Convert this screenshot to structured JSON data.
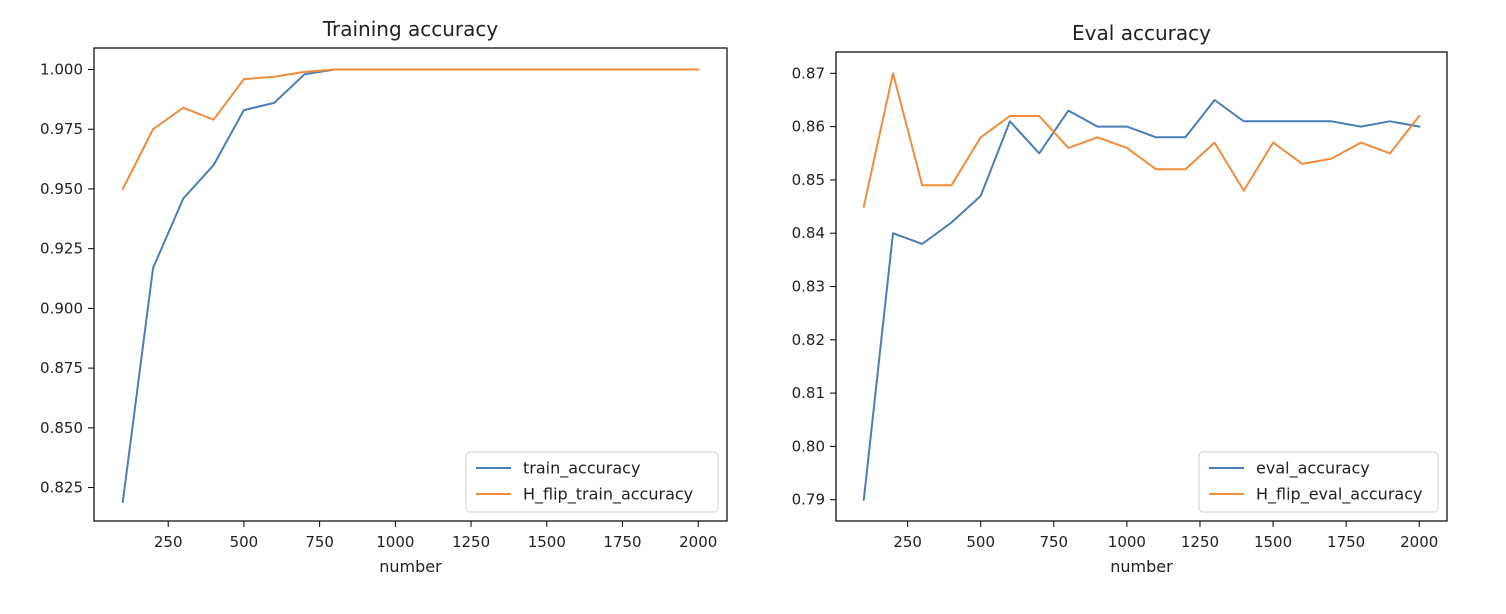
{
  "chart_data": [
    {
      "type": "line",
      "title": "Training accuracy",
      "xlabel": "number",
      "ylabel": "",
      "x": [
        100,
        200,
        300,
        400,
        500,
        600,
        700,
        800,
        900,
        1000,
        1100,
        1200,
        1300,
        1400,
        1500,
        1600,
        1700,
        1800,
        1900,
        2000
      ],
      "xlim": [
        5,
        2095
      ],
      "ylim": [
        0.811,
        1.009
      ],
      "xticks": [
        250,
        500,
        750,
        1000,
        1250,
        1500,
        1750,
        2000
      ],
      "xtick_labels": [
        "250",
        "500",
        "750",
        "1000",
        "1250",
        "1500",
        "1750",
        "2000"
      ],
      "yticks": [
        0.825,
        0.85,
        0.875,
        0.9,
        0.925,
        0.95,
        0.975,
        1.0
      ],
      "ytick_labels": [
        "0.825",
        "0.850",
        "0.875",
        "0.900",
        "0.925",
        "0.950",
        "0.975",
        "1.000"
      ],
      "grid": false,
      "legend_position": "lower-right",
      "series": [
        {
          "name": "train_accuracy",
          "color": "#4a7fb5",
          "values": [
            0.819,
            0.917,
            0.946,
            0.96,
            0.983,
            0.986,
            0.998,
            1.0,
            1.0,
            1.0,
            1.0,
            1.0,
            1.0,
            1.0,
            1.0,
            1.0,
            1.0,
            1.0,
            1.0,
            1.0
          ]
        },
        {
          "name": "H_flip_train_accuracy",
          "color": "#f08c3c",
          "values": [
            0.95,
            0.975,
            0.984,
            0.979,
            0.996,
            0.997,
            0.999,
            1.0,
            1.0,
            1.0,
            1.0,
            1.0,
            1.0,
            1.0,
            1.0,
            1.0,
            1.0,
            1.0,
            1.0,
            1.0
          ]
        }
      ]
    },
    {
      "type": "line",
      "title": "Eval accuracy",
      "xlabel": "number",
      "ylabel": "",
      "x": [
        100,
        200,
        300,
        400,
        500,
        600,
        700,
        800,
        900,
        1000,
        1100,
        1200,
        1300,
        1400,
        1500,
        1600,
        1700,
        1800,
        1900,
        2000
      ],
      "xlim": [
        5,
        2095
      ],
      "ylim": [
        0.786,
        0.874
      ],
      "xticks": [
        250,
        500,
        750,
        1000,
        1250,
        1500,
        1750,
        2000
      ],
      "xtick_labels": [
        "250",
        "500",
        "750",
        "1000",
        "1250",
        "1500",
        "1750",
        "2000"
      ],
      "yticks": [
        0.79,
        0.8,
        0.81,
        0.82,
        0.83,
        0.84,
        0.85,
        0.86,
        0.87
      ],
      "ytick_labels": [
        "0.79",
        "0.80",
        "0.81",
        "0.82",
        "0.83",
        "0.84",
        "0.85",
        "0.86",
        "0.87"
      ],
      "grid": false,
      "legend_position": "lower-right",
      "series": [
        {
          "name": "eval_accuracy",
          "color": "#4a7fb5",
          "values": [
            0.79,
            0.84,
            0.838,
            0.842,
            0.847,
            0.861,
            0.855,
            0.863,
            0.86,
            0.86,
            0.858,
            0.858,
            0.865,
            0.861,
            0.861,
            0.861,
            0.861,
            0.86,
            0.861,
            0.86
          ]
        },
        {
          "name": "H_flip_eval_accuracy",
          "color": "#f08c3c",
          "values": [
            0.845,
            0.87,
            0.849,
            0.849,
            0.858,
            0.862,
            0.862,
            0.856,
            0.858,
            0.856,
            0.852,
            0.852,
            0.857,
            0.848,
            0.857,
            0.853,
            0.854,
            0.857,
            0.855,
            0.862
          ]
        }
      ]
    }
  ]
}
